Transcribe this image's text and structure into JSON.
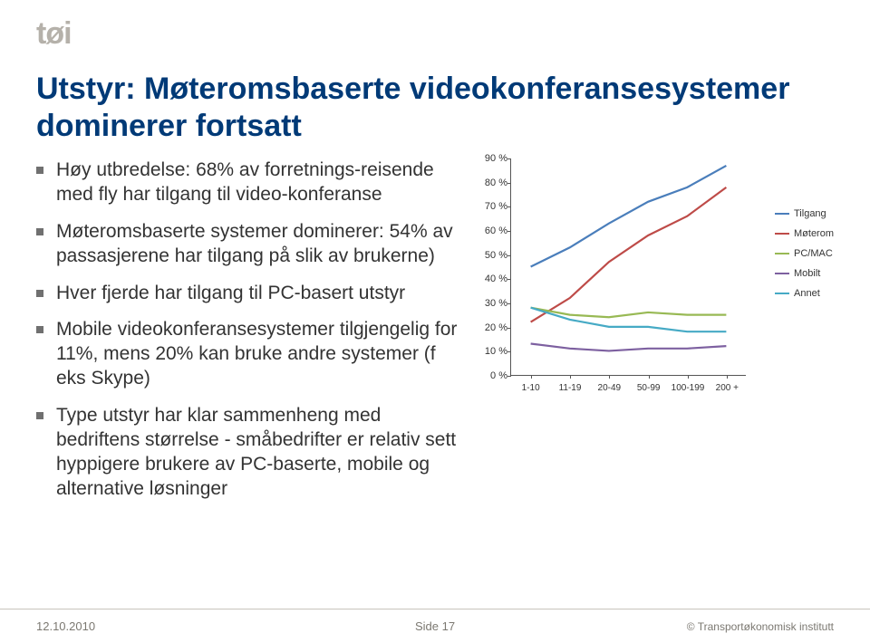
{
  "logo_text": "tøi",
  "title": "Utstyr: Møteromsbaserte videokonferansesystemer dominerer fortsatt",
  "bullets": [
    "Høy utbredelse: 68% av forretnings-reisende med fly har tilgang til video-konferanse",
    "Møteromsbaserte systemer dominerer: 54% av passasjerene har tilgang på slik av brukerne)",
    "Hver fjerde har tilgang til PC-basert utstyr",
    "Mobile videokonferansesystemer tilgjengelig for 11%, mens 20% kan bruke andre systemer (f eks Skype)",
    "Type utstyr har klar sammenheng med bedriftens størrelse - småbedrifter er relativ sett hyppigere brukere av PC-baserte, mobile og alternative løsninger"
  ],
  "chart": {
    "type": "line",
    "ylim": [
      0,
      90
    ],
    "yticks": [
      0,
      10,
      20,
      30,
      40,
      50,
      60,
      70,
      80,
      90
    ],
    "ytick_suffix": " %",
    "xticks": [
      "1-10",
      "11-19",
      "20-49",
      "50-99",
      "100-199",
      "200 +"
    ],
    "series": [
      {
        "name": "Tilgang",
        "color": "#4a7ebb",
        "values": [
          45,
          53,
          63,
          72,
          78,
          87
        ]
      },
      {
        "name": "Møterom",
        "color": "#be4b48",
        "values": [
          22,
          32,
          47,
          58,
          66,
          78
        ]
      },
      {
        "name": "PC/MAC",
        "color": "#98b954",
        "values": [
          28,
          25,
          24,
          26,
          25,
          25
        ]
      },
      {
        "name": "Mobilt",
        "color": "#7d60a0",
        "values": [
          13,
          11,
          10,
          11,
          11,
          12
        ]
      },
      {
        "name": "Annet",
        "color": "#46aac5",
        "values": [
          28,
          23,
          20,
          20,
          18,
          18
        ]
      }
    ],
    "axis_color": "#555555",
    "tick_fontsize": 11,
    "line_width": 2.2,
    "background_color": "#ffffff"
  },
  "footer": {
    "date": "12.10.2010",
    "page": "Side 17",
    "org": "© Transportøkonomisk institutt"
  },
  "colors": {
    "title": "#003a77",
    "logo": "#b5b1aa",
    "bullet_square": "#707070",
    "footer_text": "#7b7871"
  }
}
